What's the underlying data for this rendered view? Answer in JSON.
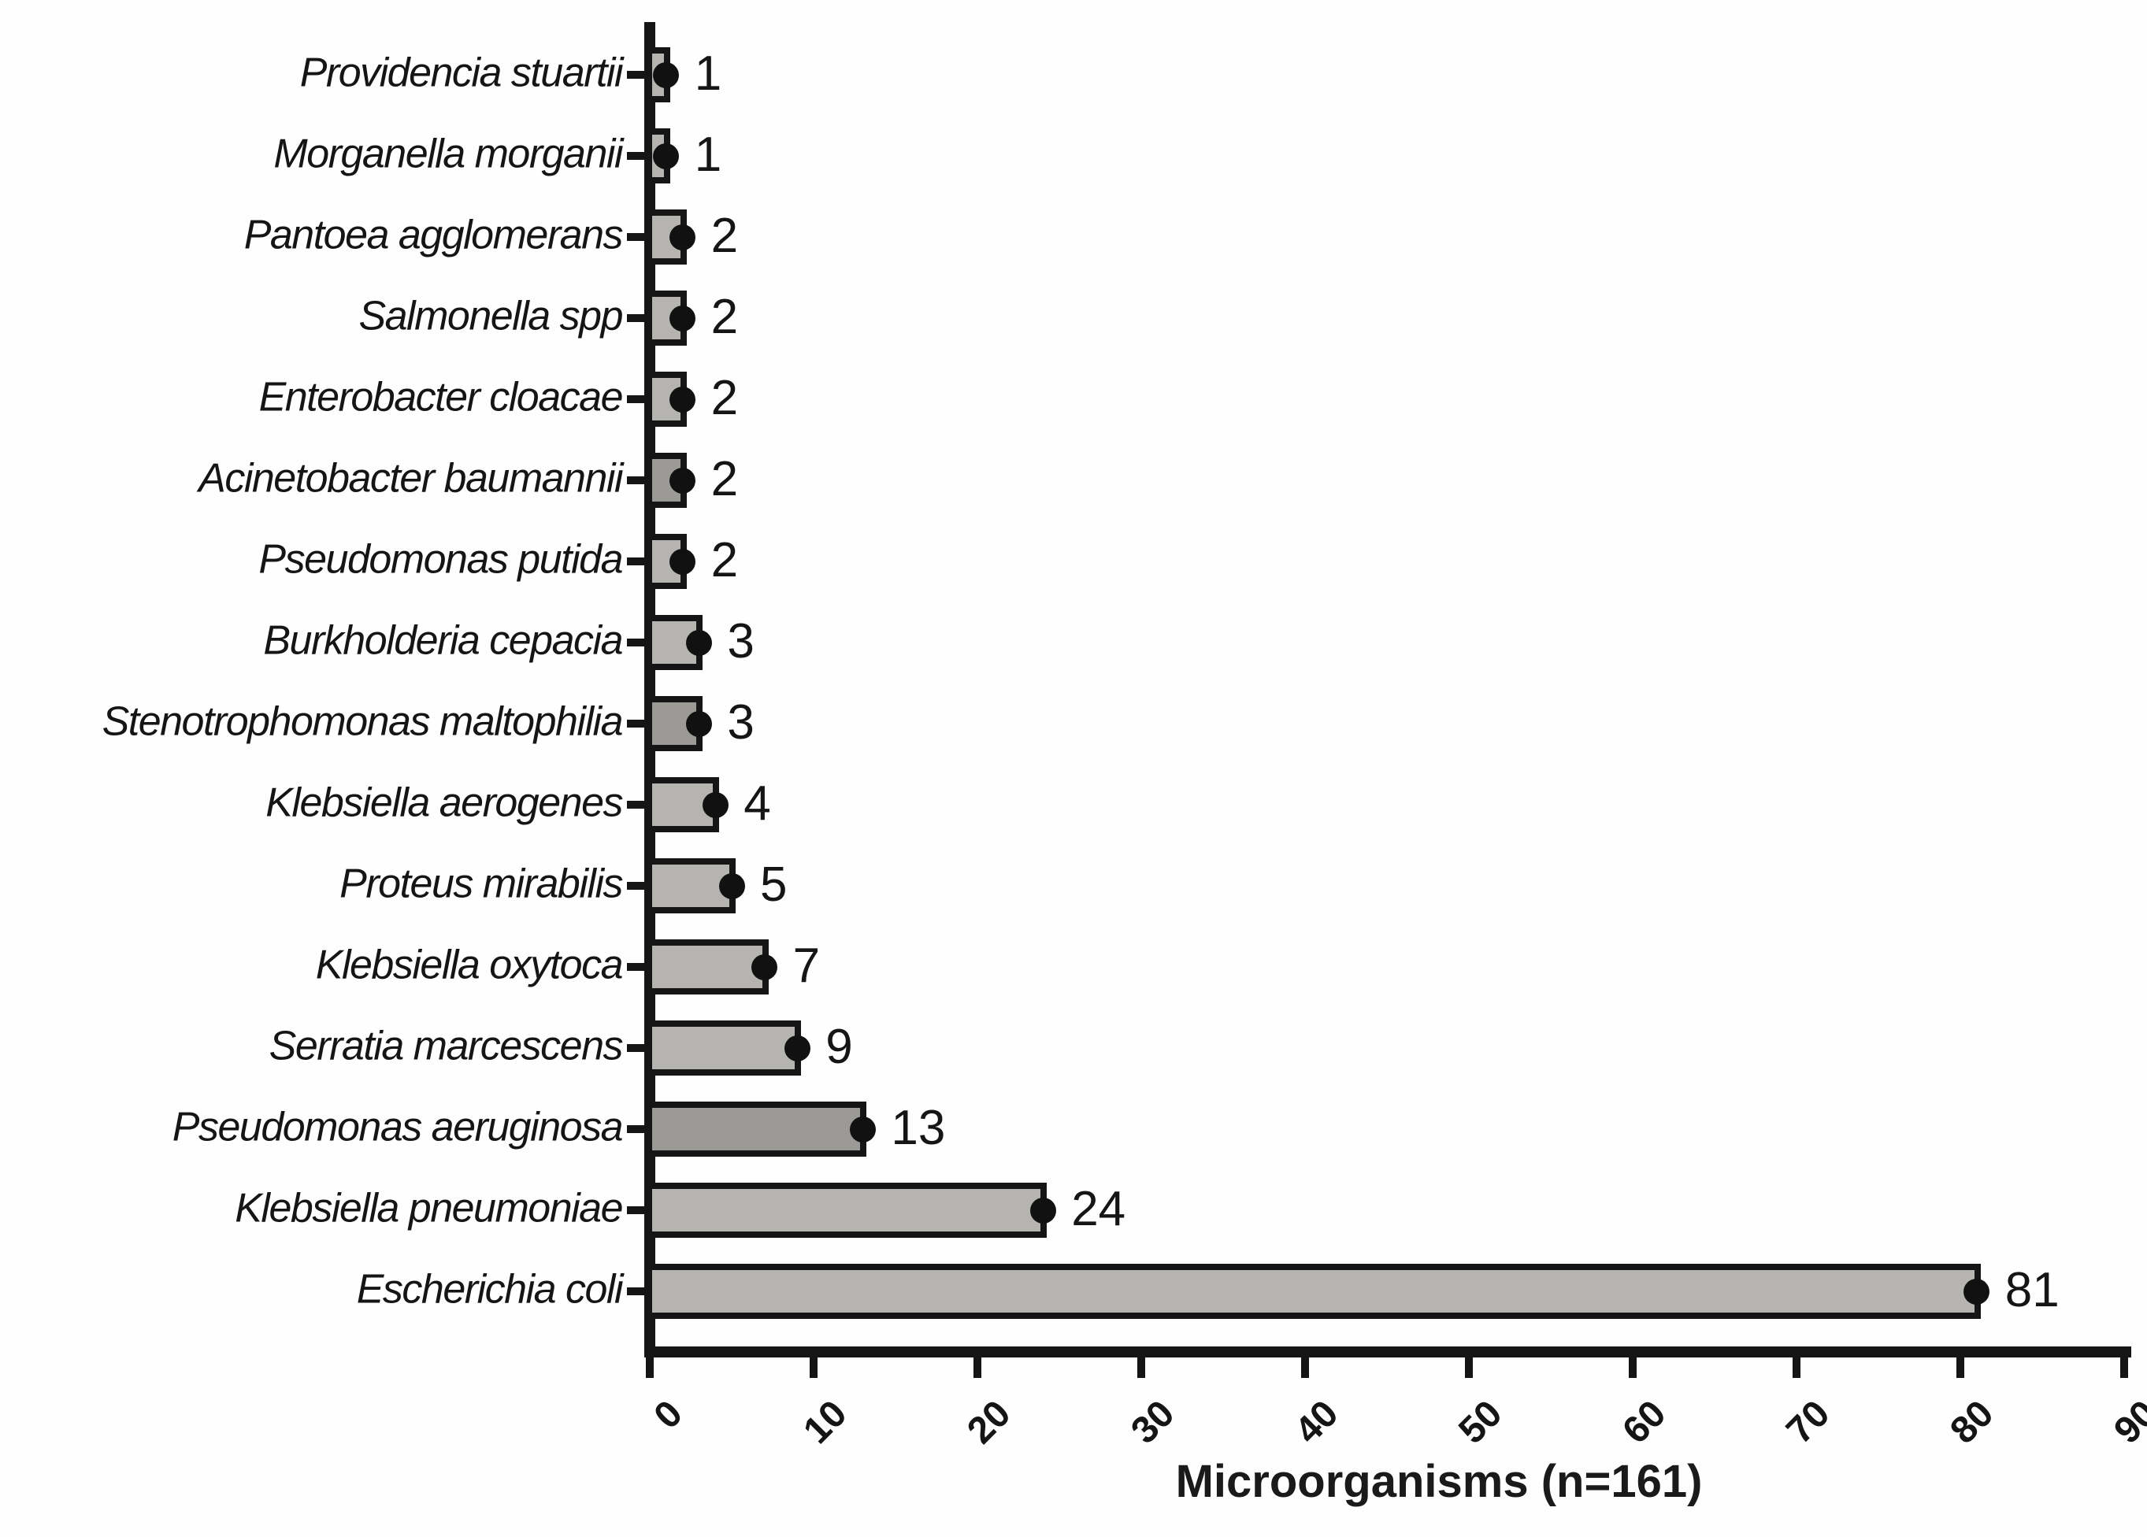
{
  "chart_data": {
    "type": "bar",
    "orientation": "horizontal",
    "title": "",
    "xlabel": "Microorganisms (n=161)",
    "ylabel": "",
    "xlim": [
      0,
      90
    ],
    "x_ticks": [
      0,
      10,
      20,
      30,
      40,
      50,
      60,
      70,
      80,
      90
    ],
    "x_tick_rotation_deg": 45,
    "grid": false,
    "legend": "none",
    "marker": "filled-black-circle-at-bar-end",
    "value_labels_shown": true,
    "categories_top_to_bottom": [
      "Providencia stuartii",
      "Morganella morganii",
      "Pantoea agglomerans",
      "Salmonella spp",
      "Enterobacter cloacae",
      "Acinetobacter baumannii",
      "Pseudomonas putida",
      "Burkholderia cepacia",
      "Stenotrophomonas maltophilia",
      "Klebsiella aerogenes",
      "Proteus mirabilis",
      "Klebsiella oxytoca",
      "Serratia marcescens",
      "Pseudomonas aeruginosa",
      "Klebsiella pneumoniae",
      "Escherichia coli"
    ],
    "values": [
      1,
      1,
      2,
      2,
      2,
      2,
      2,
      3,
      3,
      4,
      5,
      7,
      9,
      13,
      24,
      81
    ],
    "bar_shades": [
      "light",
      "light",
      "light",
      "light",
      "light",
      "dark",
      "light",
      "light",
      "dark",
      "light",
      "light",
      "light",
      "light",
      "dark",
      "light",
      "light"
    ],
    "colors": {
      "bar_light": "#b5b4b1",
      "bar_dark": "#9b9a97",
      "bar_border": "#151515",
      "marker": "#111111",
      "axis": "#151515",
      "text": "#151515",
      "background": "#fefefe"
    }
  }
}
